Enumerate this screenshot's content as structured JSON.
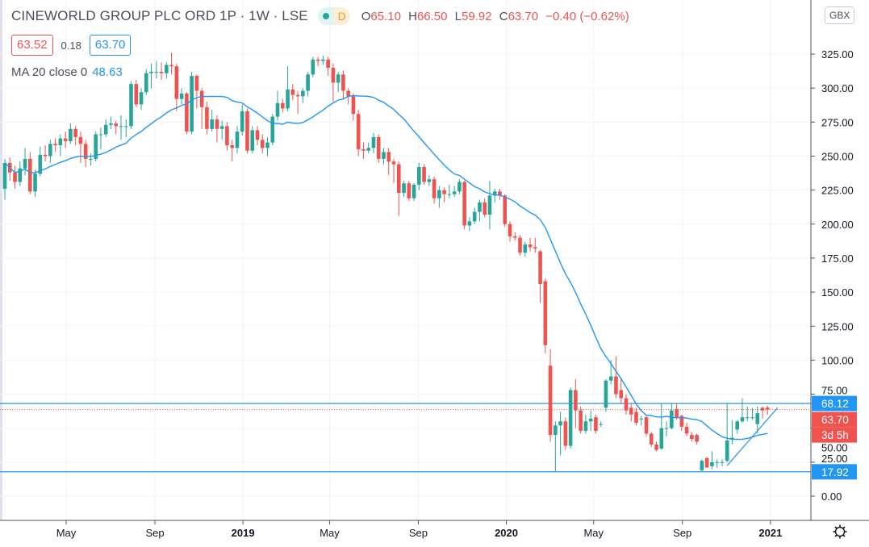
{
  "header": {
    "title": "CINEWORLD GROUP PLC ORD 1P · 1W · LSE",
    "badge_letter": "D",
    "ohlc": {
      "o_label": "O",
      "o": "65.10",
      "h_label": "H",
      "h": "66.50",
      "l_label": "L",
      "l": "59.92",
      "c_label": "C",
      "c": "63.70",
      "change": "−0.40 (−0.62%)"
    },
    "sell_price": "63.52",
    "spread": "0.18",
    "buy_price": "63.70",
    "indicator_label": "MA 20 close 0",
    "indicator_value": "48.63",
    "currency_button": "GBX"
  },
  "colors": {
    "up": "#26a69a",
    "down": "#ef5350",
    "ma": "#2196f3",
    "line": "#2196f3",
    "grid": "#f0f3fa"
  },
  "price_labels": {
    "resistance": "68.12",
    "support": "17.92",
    "last": "63.70",
    "countdown": "3d 5h"
  },
  "chart_data": {
    "type": "candlestick",
    "interval": "1W",
    "first_week": "2018-02-05",
    "ylim": [
      -15,
      340
    ],
    "y_ticks": [
      "0.00",
      "25.00",
      "50.00",
      "75.00",
      "100.00",
      "125.00",
      "150.00",
      "175.00",
      "200.00",
      "225.00",
      "250.00",
      "275.00",
      "300.00",
      "325.00"
    ],
    "x_ticks": [
      {
        "label": "May",
        "date": "2018-05-01",
        "bold": false
      },
      {
        "label": "Sep",
        "date": "2018-09-01",
        "bold": false
      },
      {
        "label": "2019",
        "date": "2019-01-01",
        "bold": true
      },
      {
        "label": "May",
        "date": "2019-05-01",
        "bold": false
      },
      {
        "label": "Sep",
        "date": "2019-09-01",
        "bold": false
      },
      {
        "label": "2020",
        "date": "2020-01-01",
        "bold": true
      },
      {
        "label": "May",
        "date": "2020-05-01",
        "bold": false
      },
      {
        "label": "Sep",
        "date": "2020-09-01",
        "bold": false
      },
      {
        "label": "2021",
        "date": "2021-01-01",
        "bold": true
      }
    ],
    "indicator": {
      "type": "sma",
      "period": 20,
      "source": "close"
    },
    "horizontal_lines": [
      68.12,
      17.92
    ],
    "last_price_line": 63.7,
    "trend_line": [
      {
        "date": "2020-11-02",
        "price": 22.5
      },
      {
        "date": "2021-01-11",
        "price": 65
      }
    ],
    "ohlc": [
      [
        226,
        248,
        218,
        245
      ],
      [
        245,
        249,
        232,
        238
      ],
      [
        238,
        243,
        226,
        231
      ],
      [
        231,
        246,
        228,
        241
      ],
      [
        241,
        256,
        236,
        248
      ],
      [
        248,
        253,
        222,
        224
      ],
      [
        224,
        240,
        220,
        237
      ],
      [
        237,
        257,
        235,
        251
      ],
      [
        251,
        258,
        246,
        250
      ],
      [
        250,
        262,
        245,
        259
      ],
      [
        259,
        263,
        253,
        258
      ],
      [
        258,
        266,
        250,
        263
      ],
      [
        263,
        268,
        256,
        261
      ],
      [
        261,
        274,
        259,
        270
      ],
      [
        270,
        272,
        258,
        264
      ],
      [
        264,
        268,
        245,
        259
      ],
      [
        259,
        262,
        242,
        248
      ],
      [
        248,
        252,
        243,
        248
      ],
      [
        248,
        268,
        246,
        266
      ],
      [
        266,
        271,
        255,
        266
      ],
      [
        266,
        277,
        264,
        273
      ],
      [
        273,
        279,
        270,
        274
      ],
      [
        274,
        276,
        266,
        272
      ],
      [
        272,
        280,
        262,
        272
      ],
      [
        272,
        277,
        264,
        272
      ],
      [
        272,
        305,
        270,
        303
      ],
      [
        303,
        306,
        286,
        288
      ],
      [
        288,
        300,
        284,
        297
      ],
      [
        297,
        314,
        295,
        311
      ],
      [
        311,
        318,
        300,
        312
      ],
      [
        312,
        320,
        307,
        312
      ],
      [
        312,
        319,
        306,
        311
      ],
      [
        311,
        319,
        307,
        317
      ],
      [
        317,
        326,
        310,
        316
      ],
      [
        316,
        318,
        283,
        292
      ],
      [
        292,
        300,
        288,
        296
      ],
      [
        296,
        297,
        266,
        268
      ],
      [
        268,
        312,
        266,
        309
      ],
      [
        309,
        310,
        285,
        298
      ],
      [
        298,
        300,
        270,
        286
      ],
      [
        286,
        290,
        266,
        270
      ],
      [
        270,
        284,
        268,
        277
      ],
      [
        277,
        280,
        260,
        270
      ],
      [
        270,
        276,
        262,
        272
      ],
      [
        272,
        275,
        254,
        258
      ],
      [
        258,
        262,
        246,
        256
      ],
      [
        256,
        272,
        252,
        268
      ],
      [
        268,
        288,
        265,
        283
      ],
      [
        283,
        285,
        252,
        254
      ],
      [
        254,
        272,
        252,
        269
      ],
      [
        269,
        272,
        258,
        262
      ],
      [
        262,
        266,
        252,
        256
      ],
      [
        256,
        264,
        250,
        260
      ],
      [
        260,
        281,
        258,
        279
      ],
      [
        279,
        298,
        276,
        289
      ],
      [
        289,
        292,
        282,
        285
      ],
      [
        285,
        316,
        283,
        299
      ],
      [
        299,
        303,
        291,
        295
      ],
      [
        295,
        298,
        281,
        294
      ],
      [
        294,
        300,
        289,
        298
      ],
      [
        298,
        312,
        294,
        310
      ],
      [
        310,
        323,
        308,
        321
      ],
      [
        321,
        323,
        316,
        320
      ],
      [
        320,
        324,
        317,
        321
      ],
      [
        321,
        323,
        309,
        315
      ],
      [
        315,
        318,
        290,
        304
      ],
      [
        304,
        312,
        297,
        310
      ],
      [
        310,
        313,
        292,
        298
      ],
      [
        298,
        300,
        288,
        294
      ],
      [
        294,
        296,
        276,
        281
      ],
      [
        281,
        284,
        250,
        255
      ],
      [
        255,
        260,
        248,
        254
      ],
      [
        254,
        260,
        252,
        256
      ],
      [
        256,
        267,
        252,
        264
      ],
      [
        264,
        266,
        245,
        248
      ],
      [
        248,
        256,
        244,
        253
      ],
      [
        253,
        256,
        236,
        246
      ],
      [
        246,
        248,
        230,
        244
      ],
      [
        244,
        246,
        206,
        223
      ],
      [
        223,
        232,
        220,
        230
      ],
      [
        230,
        232,
        217,
        219
      ],
      [
        219,
        230,
        217,
        229
      ],
      [
        229,
        245,
        225,
        242
      ],
      [
        242,
        244,
        229,
        231
      ],
      [
        231,
        236,
        228,
        233
      ],
      [
        233,
        235,
        215,
        219
      ],
      [
        219,
        228,
        212,
        225
      ],
      [
        225,
        227,
        216,
        222
      ],
      [
        222,
        229,
        219,
        222
      ],
      [
        222,
        228,
        220,
        224
      ],
      [
        224,
        233,
        222,
        231
      ],
      [
        231,
        232,
        196,
        199
      ],
      [
        199,
        205,
        195,
        202
      ],
      [
        202,
        212,
        200,
        209
      ],
      [
        209,
        218,
        202,
        216
      ],
      [
        216,
        219,
        205,
        207
      ],
      [
        207,
        232,
        196,
        221
      ],
      [
        221,
        226,
        216,
        224
      ],
      [
        224,
        226,
        218,
        221
      ],
      [
        221,
        222,
        198,
        200
      ],
      [
        200,
        202,
        187,
        191
      ],
      [
        191,
        194,
        188,
        190
      ],
      [
        190,
        192,
        177,
        179
      ],
      [
        179,
        187,
        176,
        185
      ],
      [
        185,
        190,
        180,
        183
      ],
      [
        183,
        190,
        179,
        182
      ],
      [
        180,
        181,
        142,
        156
      ],
      [
        158,
        160,
        105,
        111
      ],
      [
        96,
        108,
        40,
        45
      ],
      [
        45,
        55,
        18,
        52
      ],
      [
        52,
        62,
        30,
        55
      ],
      [
        55,
        58,
        34,
        37
      ],
      [
        37,
        80,
        35,
        78
      ],
      [
        78,
        86,
        50,
        63
      ],
      [
        63,
        66,
        46,
        48
      ],
      [
        48,
        60,
        46,
        55
      ],
      [
        55,
        63,
        48,
        57
      ],
      [
        58,
        60,
        46,
        48
      ],
      [
        53,
        55,
        51,
        53
      ],
      [
        65,
        86,
        62,
        85
      ],
      [
        85,
        100,
        82,
        88
      ],
      [
        88,
        103,
        72,
        75
      ],
      [
        78,
        86,
        68,
        72
      ],
      [
        72,
        75,
        60,
        63
      ],
      [
        65,
        68,
        55,
        60
      ],
      [
        62,
        65,
        52,
        54
      ],
      [
        57,
        59,
        52,
        57
      ],
      [
        58,
        60,
        44,
        46
      ],
      [
        46,
        47,
        36,
        38
      ],
      [
        38,
        40,
        33,
        34
      ],
      [
        35,
        68,
        34,
        50
      ],
      [
        50,
        55,
        44,
        50
      ],
      [
        50,
        68,
        49,
        63
      ],
      [
        64,
        68,
        56,
        58
      ],
      [
        59,
        60,
        48,
        51
      ],
      [
        51,
        54,
        44,
        46
      ],
      [
        45,
        47,
        40,
        42
      ],
      [
        45,
        46,
        38,
        40
      ],
      [
        19,
        27,
        17.92,
        26
      ],
      [
        28,
        29,
        21,
        21
      ],
      [
        22,
        33,
        20,
        25
      ],
      [
        25,
        27,
        21,
        25
      ],
      [
        25,
        27,
        22,
        25
      ],
      [
        26,
        68,
        25,
        41
      ],
      [
        42,
        56,
        38,
        43
      ],
      [
        49,
        56,
        46,
        55
      ],
      [
        55,
        72,
        54,
        58
      ],
      [
        58,
        66,
        55,
        58
      ],
      [
        58,
        65,
        56,
        58
      ],
      [
        53,
        66,
        46,
        61
      ],
      [
        65,
        66,
        57,
        63
      ],
      [
        65.1,
        66.5,
        59.92,
        63.7
      ]
    ]
  }
}
